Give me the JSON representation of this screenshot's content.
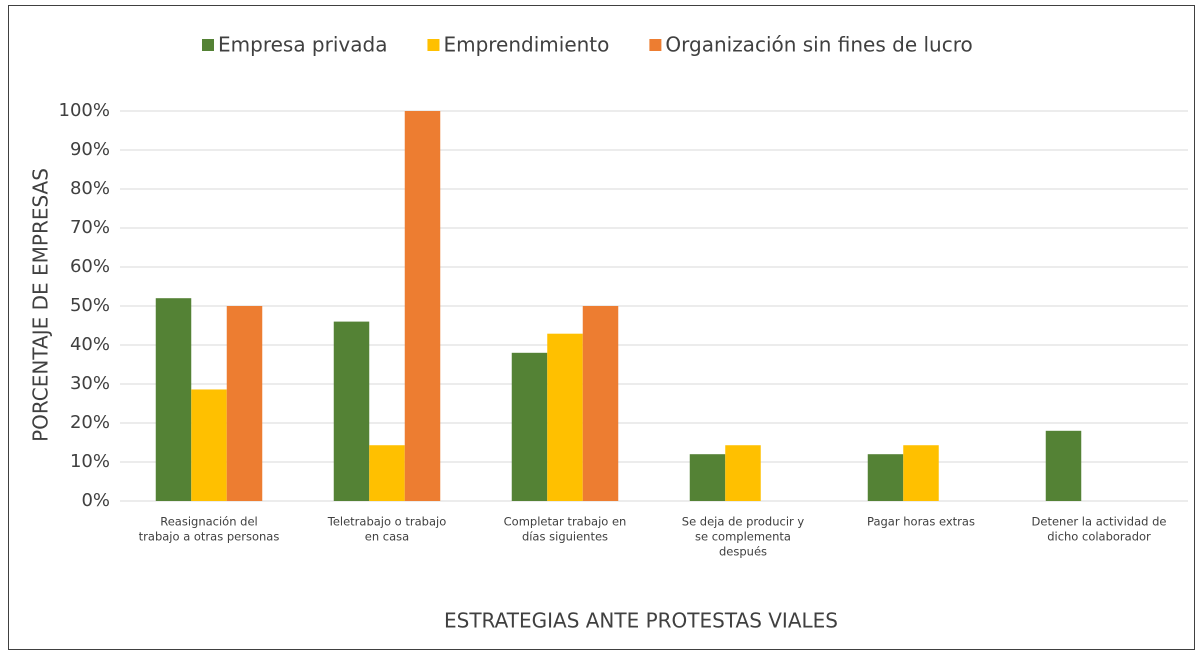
{
  "chart_data": {
    "type": "bar",
    "x_label": "ESTRATEGIAS ANTE PROTESTAS VIALES",
    "y_label": "PORCENTAJE DE EMPRESAS",
    "categories": [
      [
        "Reasignación del",
        "trabajo a otras personas"
      ],
      [
        "Teletrabajo o trabajo",
        "en casa"
      ],
      [
        "Completar trabajo en",
        "días siguientes"
      ],
      [
        "Se deja de producir y",
        "se complementa",
        "después"
      ],
      [
        "Pagar horas extras"
      ],
      [
        "Detener la actividad de",
        "dicho colaborador"
      ]
    ],
    "series": [
      {
        "name": "Empresa privada",
        "color": "#548235",
        "values": [
          52,
          46,
          38,
          12,
          12,
          18
        ]
      },
      {
        "name": "Emprendimiento",
        "color": "#ffc000",
        "values": [
          28.6,
          14.3,
          42.9,
          14.3,
          14.3,
          0
        ]
      },
      {
        "name": "Organización sin fines de lucro",
        "color": "#ed7d31",
        "values": [
          50,
          100,
          50,
          0,
          0,
          0
        ]
      }
    ],
    "ylim": [
      0,
      100
    ],
    "yticks": [
      {
        "value": 0,
        "label": "0%"
      },
      {
        "value": 10,
        "label": "10%"
      },
      {
        "value": 20,
        "label": "20%"
      },
      {
        "value": 30,
        "label": "30%"
      },
      {
        "value": 40,
        "label": "40%"
      },
      {
        "value": 50,
        "label": "50%"
      },
      {
        "value": 60,
        "label": "60%"
      },
      {
        "value": 70,
        "label": "70%"
      },
      {
        "value": 80,
        "label": "80%"
      },
      {
        "value": 90,
        "label": "90%"
      },
      {
        "value": 100,
        "label": "100%"
      }
    ],
    "grid": true,
    "legend": "top"
  }
}
